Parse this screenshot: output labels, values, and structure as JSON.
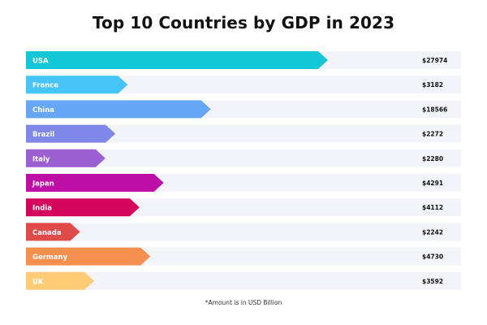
{
  "chart_data": {
    "type": "bar",
    "orientation": "horizontal",
    "title": "Top 10 Countries by GDP in 2023",
    "footnote": "*Amount is in USD Billion",
    "value_prefix": "$",
    "xlim": [
      0,
      27974
    ],
    "grid": false,
    "legend": "none",
    "categories": [
      "USA",
      "France",
      "China",
      "Brazil",
      "Italy",
      "Japan",
      "India",
      "Canada",
      "Germany",
      "UK"
    ],
    "values": [
      27974,
      3182,
      18566,
      2272,
      2280,
      4291,
      4112,
      2242,
      4730,
      3592
    ],
    "value_labels": [
      "$27974",
      "$3182",
      "$18566",
      "$2272",
      "$2280",
      "$4291",
      "$4112",
      "$2242",
      "$4730",
      "$3592"
    ],
    "bar_fill_fractions": [
      1.0,
      0.337,
      0.612,
      0.296,
      0.263,
      0.456,
      0.376,
      0.179,
      0.412,
      0.226
    ],
    "colors": [
      "#13c7d6",
      "#45c4f8",
      "#65a6f6",
      "#7f87e8",
      "#9a5fd0",
      "#bd0fa5",
      "#d4075f",
      "#e04a48",
      "#f7904f",
      "#ffcb74"
    ],
    "track_color": "#f3f3fa"
  }
}
